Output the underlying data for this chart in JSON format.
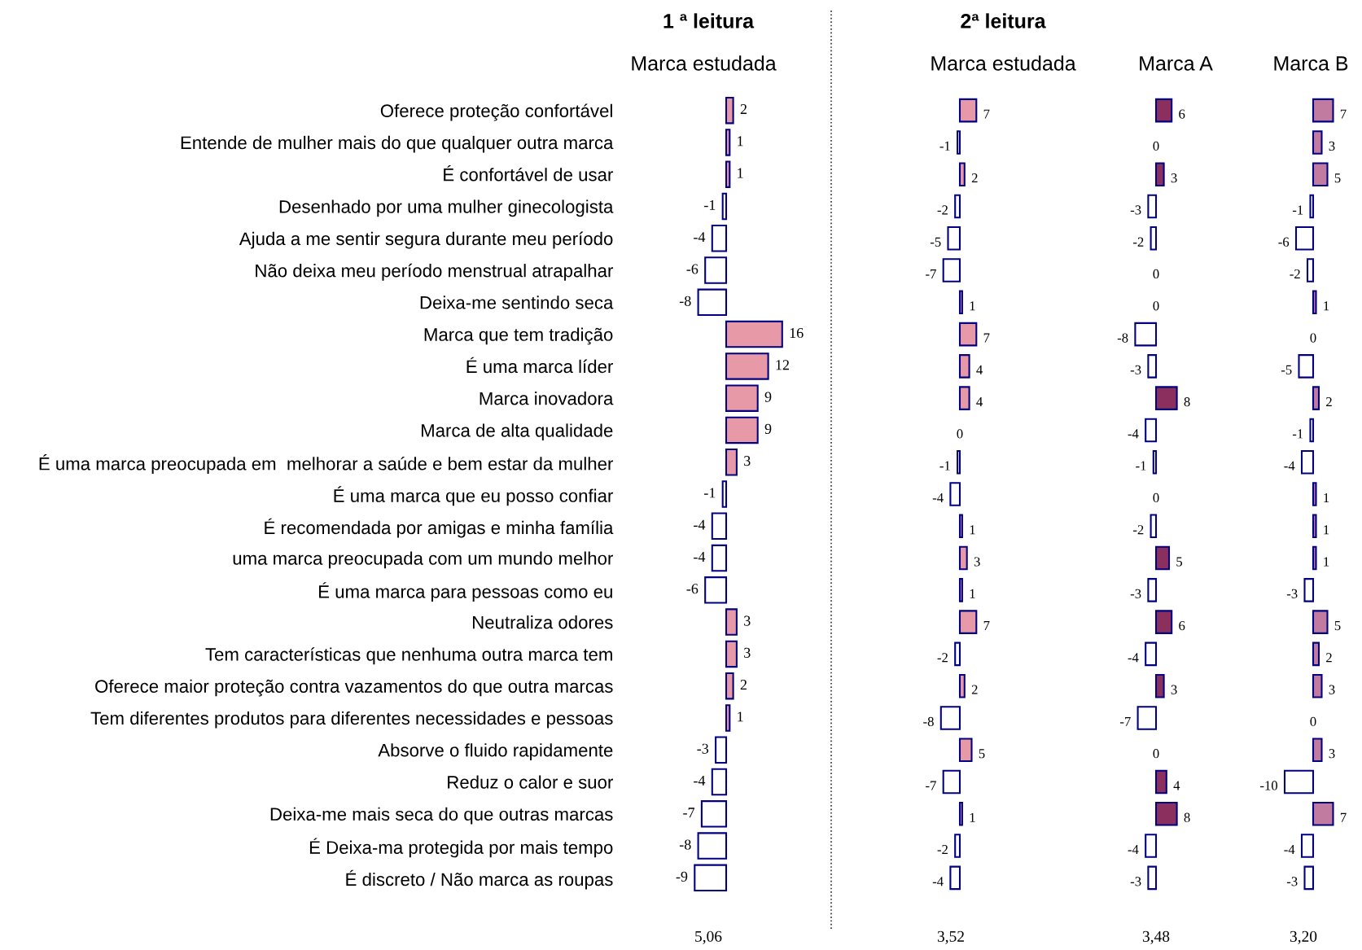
{
  "chart_data": [
    {
      "type": "bar",
      "orientation": "horizontal",
      "title": "1 ª leitura",
      "subtitle": "Marca estudada",
      "tick_labels": "y",
      "data_labels": true,
      "annotations": [
        "5,06"
      ],
      "categories": [
        "Oferece proteção confortável",
        "Entende de mulher mais do que qualquer outra marca",
        "É confortável de usar",
        "Desenhado por uma mulher ginecologista",
        "Ajuda a me sentir segura durante meu período",
        "Não deixa meu período menstrual atrapalhar",
        "Deixa-me sentindo seca",
        "Marca que tem tradição",
        "É uma marca líder",
        "Marca inovadora",
        "Marca de alta qualidade",
        "É uma marca preocupada em  melhorar a saúde e bem estar da mulher",
        "É uma marca que eu posso confiar",
        "É recomendada por amigas e minha família",
        "uma marca preocupada com um mundo melhor",
        "É uma marca para pessoas como eu",
        "Neutraliza odores",
        "Tem características que nenhuma outra marca tem",
        "Oferece maior proteção contra vazamentos do que outra marcas",
        "Tem diferentes produtos para diferentes necessidades e pessoas",
        "Absorve o fluido rapidamente",
        "Reduz o calor e suor",
        "Deixa-me mais seca do que outras marcas",
        "É Deixa-ma protegida por mais tempo",
        "É discreto / Não marca as roupas"
      ],
      "values": [
        2,
        1,
        1,
        -1,
        -4,
        -6,
        -8,
        16,
        12,
        9,
        9,
        3,
        -1,
        -4,
        -4,
        -6,
        3,
        3,
        2,
        1,
        -3,
        -4,
        -7,
        -8,
        -9
      ],
      "colors": [
        "#e899a8",
        "#e899a8",
        "#e899a8",
        "#ffffff",
        "#ffffff",
        "#ffffff",
        "#ffffff",
        "#e899a8",
        "#e899a8",
        "#e899a8",
        "#e899a8",
        "#e899a8",
        "#ffffff",
        "#ffffff",
        "#ffffff",
        "#ffffff",
        "#e899a8",
        "#e899a8",
        "#e899a8",
        "#e899a8",
        "#ffffff",
        "#ffffff",
        "#ffffff",
        "#ffffff",
        "#ffffff"
      ]
    },
    {
      "type": "bar",
      "orientation": "horizontal",
      "title": "2ª leitura",
      "subtitle": "Marca estudada",
      "tick_labels": false,
      "data_labels": true,
      "annotations": [
        "3,52"
      ],
      "categories": [
        null,
        null,
        null,
        null,
        null,
        null,
        null,
        null,
        null,
        null,
        null,
        null,
        null,
        null,
        null,
        null,
        null,
        null,
        null,
        null,
        null,
        null,
        null,
        null,
        null
      ],
      "values": [
        7,
        -1,
        2,
        -2,
        -5,
        -7,
        1,
        7,
        4,
        4,
        0,
        -1,
        -4,
        1,
        3,
        1,
        7,
        -2,
        2,
        -8,
        5,
        -7,
        1,
        -2,
        -4
      ],
      "colors": [
        "#e899a8",
        "#ffffff",
        "#e899a8",
        "#ffffff",
        "#ffffff",
        "#ffffff",
        "#e899a8",
        "#e899a8",
        "#e899a8",
        "#e899a8",
        "#e899a8",
        "#ffffff",
        "#ffffff",
        "#e899a8",
        "#e899a8",
        "#e899a8",
        "#e899a8",
        "#ffffff",
        "#e899a8",
        "#ffffff",
        "#e899a8",
        "#ffffff",
        "#e899a8",
        "#ffffff",
        "#ffffff"
      ]
    },
    {
      "type": "bar",
      "orientation": "horizontal",
      "subtitle": "Marca A",
      "tick_labels": false,
      "data_labels": true,
      "annotations": [
        "3,48"
      ],
      "categories": [
        null,
        null,
        null,
        null,
        null,
        null,
        null,
        null,
        null,
        null,
        null,
        null,
        null,
        null,
        null,
        null,
        null,
        null,
        null,
        null,
        null,
        null,
        null,
        null,
        null
      ],
      "values": [
        6,
        0,
        3,
        -3,
        -2,
        0,
        0,
        -8,
        -3,
        8,
        -4,
        -1,
        0,
        -2,
        5,
        -3,
        6,
        -4,
        3,
        -7,
        0,
        4,
        8,
        -4,
        -3
      ],
      "colors": [
        "#8b2f5f",
        "#8b2f5f",
        "#8b2f5f",
        "#ffffff",
        "#ffffff",
        "#8b2f5f",
        "#8b2f5f",
        "#ffffff",
        "#ffffff",
        "#8b2f5f",
        "#ffffff",
        "#ffffff",
        "#8b2f5f",
        "#ffffff",
        "#8b2f5f",
        "#ffffff",
        "#8b2f5f",
        "#ffffff",
        "#8b2f5f",
        "#ffffff",
        "#8b2f5f",
        "#8b2f5f",
        "#8b2f5f",
        "#ffffff",
        "#ffffff"
      ]
    },
    {
      "type": "bar",
      "orientation": "horizontal",
      "subtitle": "Marca B",
      "tick_labels": false,
      "data_labels": true,
      "annotations": [
        "3,20"
      ],
      "categories": [
        null,
        null,
        null,
        null,
        null,
        null,
        null,
        null,
        null,
        null,
        null,
        null,
        null,
        null,
        null,
        null,
        null,
        null,
        null,
        null,
        null,
        null,
        null,
        null,
        null
      ],
      "values": [
        7,
        3,
        5,
        -1,
        -6,
        -2,
        1,
        0,
        -5,
        2,
        -1,
        -4,
        1,
        1,
        1,
        -3,
        5,
        2,
        3,
        0,
        3,
        -10,
        7,
        -4,
        -3
      ],
      "colors": [
        "#c27ba0",
        "#c27ba0",
        "#c27ba0",
        "#ffffff",
        "#ffffff",
        "#ffffff",
        "#c27ba0",
        "#c27ba0",
        "#ffffff",
        "#c27ba0",
        "#ffffff",
        "#ffffff",
        "#c27ba0",
        "#c27ba0",
        "#c27ba0",
        "#ffffff",
        "#c27ba0",
        "#c27ba0",
        "#c27ba0",
        "#c27ba0",
        "#c27ba0",
        "#ffffff",
        "#c27ba0",
        "#ffffff",
        "#ffffff"
      ]
    }
  ]
}
